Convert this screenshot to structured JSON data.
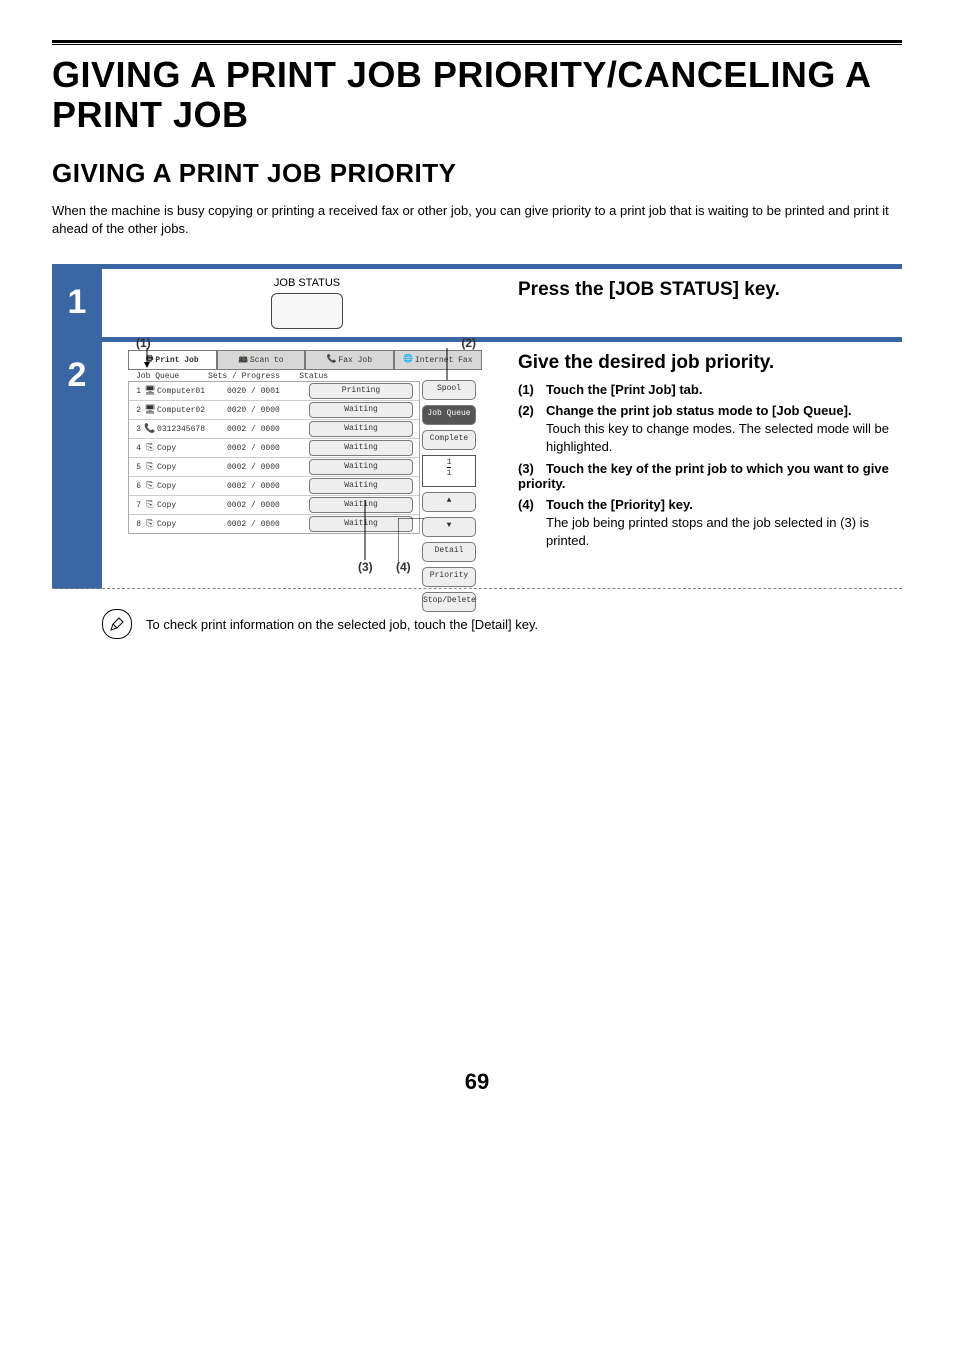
{
  "page": {
    "number": "69",
    "title": "GIVING A PRINT JOB PRIORITY/CANCELING A PRINT JOB",
    "subtitle": "GIVING A PRINT JOB PRIORITY",
    "intro": "When the machine is busy copying or printing a received fax or other job, you can give priority to a print job that is waiting to be printed and print it ahead of the other jobs."
  },
  "colors": {
    "accent": "#3a66a3",
    "tab_inactive": "#d7d7d7",
    "btn_dark": "#555555"
  },
  "step1": {
    "num": "1",
    "key_label": "JOB STATUS",
    "instruction": "Press the [JOB STATUS] key."
  },
  "step2": {
    "num": "2",
    "heading": "Give the desired job priority.",
    "callouts": {
      "c1": "(1)",
      "c2": "(2)",
      "c3": "(3)",
      "c4": "(4)"
    },
    "subs": [
      {
        "n": "(1)",
        "label": "Touch the [Print Job] tab.",
        "desc": ""
      },
      {
        "n": "(2)",
        "label": "Change the print job status mode to [Job Queue].",
        "desc": "Touch this key to change modes. The selected mode will be highlighted."
      },
      {
        "n": "(3)",
        "label": "Touch the key of the print job to which you want to give priority.",
        "desc": ""
      },
      {
        "n": "(4)",
        "label": "Touch the [Priority] key.",
        "desc": "The job being printed stops and the job selected in (3) is printed."
      }
    ],
    "panel": {
      "tabs": [
        {
          "icon": "print",
          "label": "Print Job",
          "active": true
        },
        {
          "icon": "scan",
          "label": "Scan to",
          "active": false
        },
        {
          "icon": "fax",
          "label": "Fax Job",
          "active": false
        },
        {
          "icon": "ifax",
          "label": "Internet Fax",
          "active": false
        }
      ],
      "list_header": {
        "queue": "Job Queue",
        "sets": "Sets / Progress",
        "status": "Status"
      },
      "rows": [
        {
          "n": "1",
          "icon": "pc",
          "name": "Computer01",
          "prog": "0020 / 0001",
          "state": "Printing"
        },
        {
          "n": "2",
          "icon": "pc",
          "name": "Computer02",
          "prog": "0020 / 0000",
          "state": "Waiting"
        },
        {
          "n": "3",
          "icon": "tel",
          "name": "0312345678",
          "prog": "0002 / 0000",
          "state": "Waiting"
        },
        {
          "n": "4",
          "icon": "cp",
          "name": "Copy",
          "prog": "0002 / 0000",
          "state": "Waiting"
        },
        {
          "n": "5",
          "icon": "cp",
          "name": "Copy",
          "prog": "0002 / 0000",
          "state": "Waiting"
        },
        {
          "n": "6",
          "icon": "cp",
          "name": "Copy",
          "prog": "0002 / 0000",
          "state": "Waiting"
        },
        {
          "n": "7",
          "icon": "cp",
          "name": "Copy",
          "prog": "0002 / 0000",
          "state": "Waiting"
        },
        {
          "n": "8",
          "icon": "cp",
          "name": "Copy",
          "prog": "0002 / 0000",
          "state": "Waiting"
        }
      ],
      "side": {
        "spool": "Spool",
        "job_queue": "Job Queue",
        "complete": "Complete",
        "page_curr": "1",
        "page_total": "1",
        "up": "▲",
        "down": "▼",
        "detail": "Detail",
        "priority": "Priority",
        "stopdel": "Stop/Delete"
      }
    }
  },
  "note": "To check print information on the selected job, touch the [Detail] key."
}
